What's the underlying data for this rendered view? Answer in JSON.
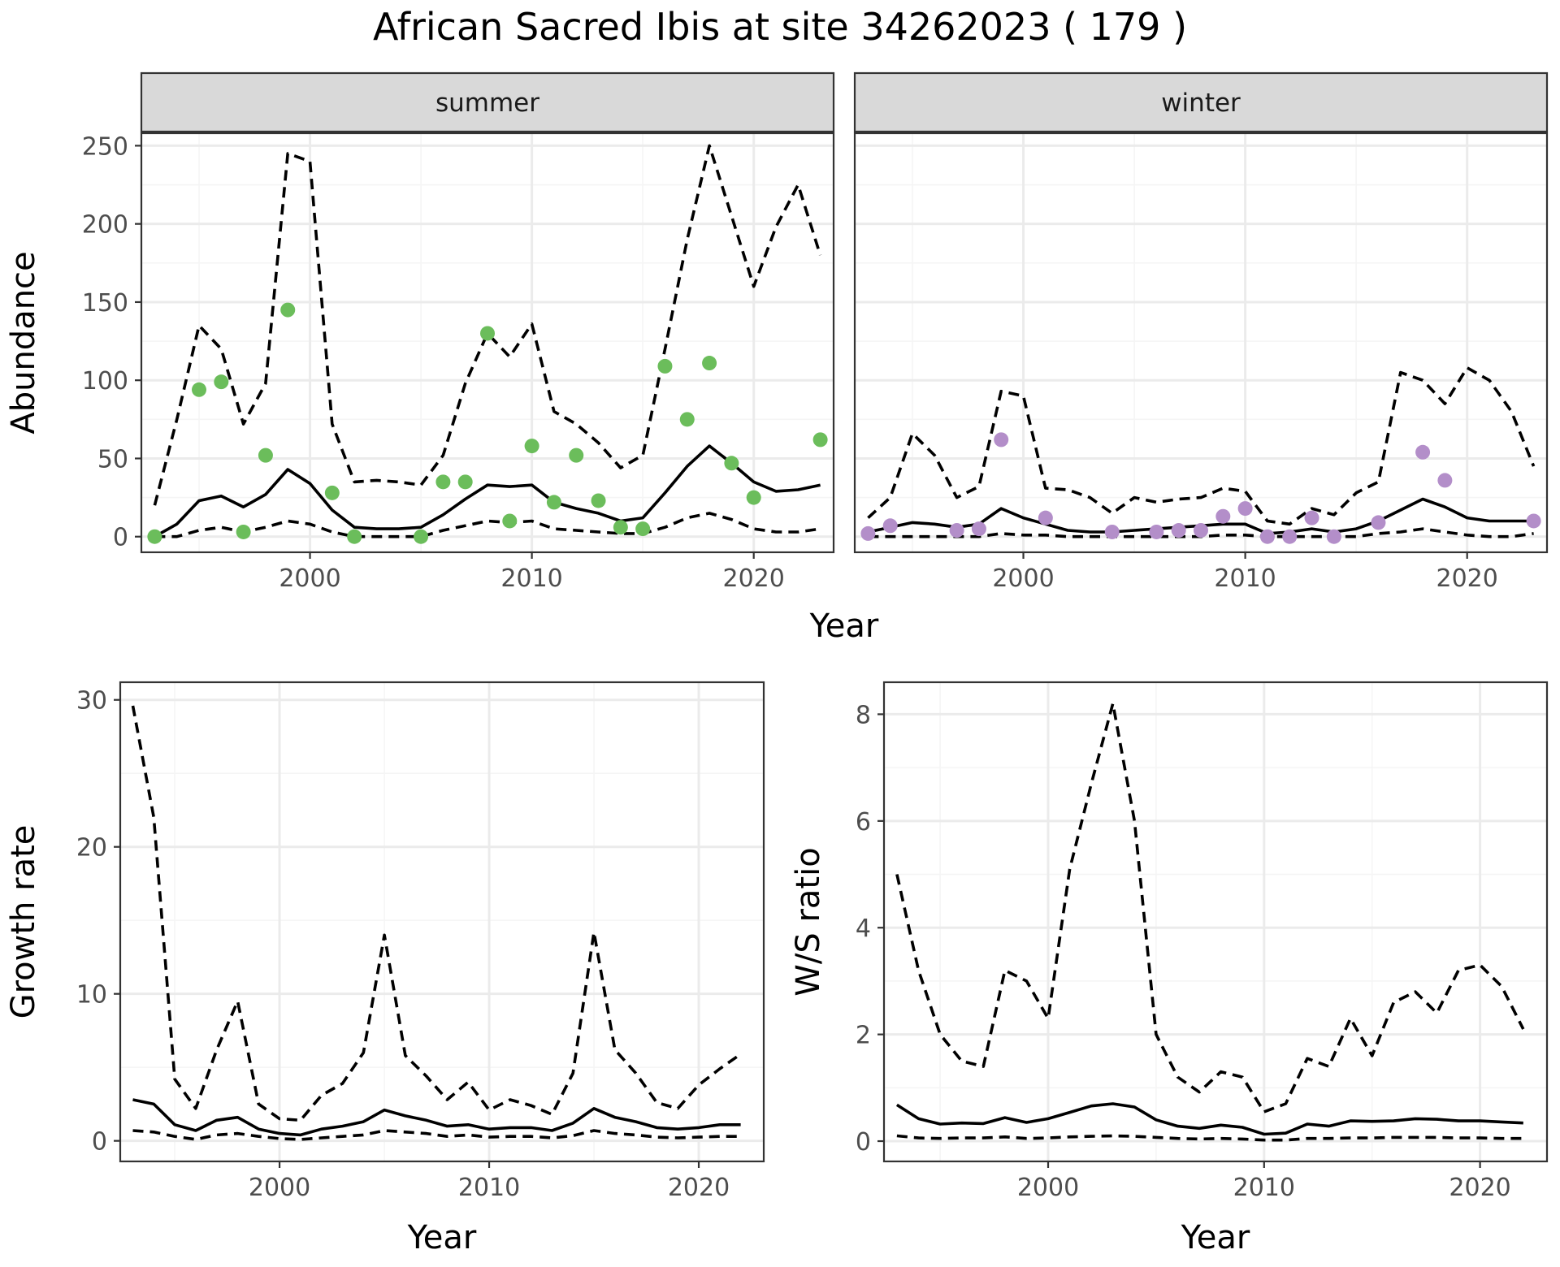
{
  "title": "African Sacred Ibis at site 34262023 ( 179 )",
  "colors": {
    "summer_points": "#6bbd5b",
    "winter_points": "#b38ec9",
    "line": "#000000",
    "strip_fill": "#d9d9d9",
    "grid_major": "#ebebeb",
    "grid_minor": "#f5f5f5",
    "tick_label": "#4d4d4d"
  },
  "chart_data": [
    {
      "type": "line",
      "panel": "summer",
      "strip_label": "summer",
      "ylabel": "Abundance",
      "xlabel": "Year",
      "xlim": [
        1992.4,
        2023.6
      ],
      "ylim": [
        -10,
        258
      ],
      "xticks": [
        2000,
        2010,
        2020
      ],
      "yticks": [
        0,
        50,
        100,
        150,
        200,
        250
      ],
      "x": [
        1993,
        1994,
        1995,
        1996,
        1997,
        1998,
        1999,
        2000,
        2001,
        2002,
        2003,
        2004,
        2005,
        2006,
        2007,
        2008,
        2009,
        2010,
        2011,
        2012,
        2013,
        2014,
        2015,
        2016,
        2017,
        2018,
        2019,
        2020,
        2021,
        2022,
        2023
      ],
      "series": [
        {
          "role": "mean",
          "style": "solid",
          "values": [
            0,
            8,
            23,
            26,
            19,
            27,
            43,
            34,
            17,
            6,
            5,
            5,
            6,
            14,
            24,
            33,
            32,
            33,
            22,
            18,
            15,
            10,
            12,
            28,
            45,
            58,
            47,
            35,
            29,
            30,
            33
          ]
        },
        {
          "role": "upper",
          "style": "dashed",
          "values": [
            20,
            75,
            135,
            120,
            72,
            98,
            245,
            240,
            72,
            35,
            36,
            35,
            33,
            52,
            98,
            130,
            115,
            136,
            80,
            72,
            60,
            44,
            52,
            120,
            190,
            250,
            205,
            160,
            198,
            225,
            180
          ]
        },
        {
          "role": "lower",
          "style": "dashed",
          "values": [
            0,
            0,
            4,
            6,
            3,
            6,
            10,
            8,
            3,
            0,
            0,
            0,
            0,
            4,
            7,
            10,
            9,
            10,
            5,
            4,
            3,
            2,
            2,
            6,
            12,
            15,
            11,
            5,
            3,
            3,
            5
          ]
        }
      ],
      "points": {
        "color": "#6bbd5b",
        "x": [
          1993,
          1995,
          1996,
          1997,
          1998,
          1999,
          2001,
          2002,
          2005,
          2006,
          2007,
          2008,
          2009,
          2010,
          2011,
          2012,
          2013,
          2014,
          2015,
          2016,
          2017,
          2018,
          2019,
          2020,
          2023
        ],
        "y": [
          0,
          94,
          99,
          3,
          52,
          145,
          28,
          0,
          0,
          35,
          35,
          130,
          10,
          58,
          22,
          52,
          23,
          6,
          5,
          109,
          75,
          111,
          47,
          25,
          62
        ]
      }
    },
    {
      "type": "line",
      "panel": "winter",
      "strip_label": "winter",
      "ylabel": "",
      "xlabel": "Year",
      "xlim": [
        1992.4,
        2023.6
      ],
      "ylim": [
        -10,
        258
      ],
      "xticks": [
        2000,
        2010,
        2020
      ],
      "yticks": [
        0,
        50,
        100,
        150,
        200,
        250
      ],
      "x": [
        1993,
        1994,
        1995,
        1996,
        1997,
        1998,
        1999,
        2000,
        2001,
        2002,
        2003,
        2004,
        2005,
        2006,
        2007,
        2008,
        2009,
        2010,
        2011,
        2012,
        2013,
        2014,
        2015,
        2016,
        2017,
        2018,
        2019,
        2020,
        2021,
        2022,
        2023
      ],
      "series": [
        {
          "role": "mean",
          "style": "solid",
          "values": [
            3,
            6,
            9,
            8,
            6,
            8,
            18,
            12,
            8,
            4,
            3,
            3,
            4,
            5,
            6,
            7,
            8,
            8,
            2,
            3,
            5,
            3,
            5,
            10,
            17,
            24,
            19,
            12,
            10,
            10,
            10
          ]
        },
        {
          "role": "upper",
          "style": "dashed",
          "values": [
            12,
            25,
            66,
            52,
            25,
            32,
            93,
            90,
            31,
            30,
            25,
            15,
            25,
            22,
            24,
            25,
            31,
            29,
            10,
            8,
            18,
            14,
            28,
            35,
            105,
            100,
            85,
            108,
            100,
            80,
            45
          ]
        },
        {
          "role": "lower",
          "style": "dashed",
          "values": [
            0,
            0,
            0,
            0,
            0,
            0,
            2,
            1,
            1,
            0,
            0,
            0,
            0,
            0,
            0,
            0,
            1,
            1,
            0,
            0,
            0,
            0,
            0,
            2,
            3,
            5,
            3,
            1,
            0,
            0,
            2
          ]
        }
      ],
      "points": {
        "color": "#b38ec9",
        "x": [
          1993,
          1994,
          1997,
          1998,
          1999,
          2001,
          2004,
          2006,
          2007,
          2008,
          2009,
          2010,
          2011,
          2012,
          2013,
          2014,
          2016,
          2018,
          2019,
          2023
        ],
        "y": [
          2,
          7,
          4,
          5,
          62,
          12,
          3,
          3,
          4,
          4,
          13,
          18,
          0,
          0,
          12,
          0,
          9,
          54,
          36,
          10
        ]
      }
    },
    {
      "type": "line",
      "panel": "growth",
      "ylabel": "Growth rate",
      "xlabel": "Year",
      "xlim": [
        1992.4,
        2023.1
      ],
      "ylim": [
        -1.4,
        31.2
      ],
      "xticks": [
        2000,
        2010,
        2020
      ],
      "yticks": [
        0,
        10,
        20,
        30
      ],
      "x": [
        1993,
        1994,
        1995,
        1996,
        1997,
        1998,
        1999,
        2000,
        2001,
        2002,
        2003,
        2004,
        2005,
        2006,
        2007,
        2008,
        2009,
        2010,
        2011,
        2012,
        2013,
        2014,
        2015,
        2016,
        2017,
        2018,
        2019,
        2020,
        2021,
        2022
      ],
      "series": [
        {
          "role": "mean",
          "style": "solid",
          "values": [
            2.8,
            2.5,
            1.1,
            0.7,
            1.4,
            1.6,
            0.8,
            0.5,
            0.4,
            0.8,
            1.0,
            1.3,
            2.1,
            1.7,
            1.4,
            1.0,
            1.1,
            0.8,
            0.9,
            0.9,
            0.7,
            1.2,
            2.2,
            1.6,
            1.3,
            0.9,
            0.8,
            0.9,
            1.1,
            1.1
          ]
        },
        {
          "role": "upper",
          "style": "dashed",
          "values": [
            29.6,
            22,
            4.2,
            2.2,
            6.2,
            9.5,
            2.5,
            1.5,
            1.4,
            3.1,
            3.9,
            6.0,
            14.0,
            5.8,
            4.4,
            2.8,
            4.0,
            2.1,
            2.8,
            2.4,
            1.8,
            4.6,
            14.2,
            6.2,
            4.6,
            2.6,
            2.2,
            3.8,
            4.9,
            5.9
          ]
        },
        {
          "role": "lower",
          "style": "dashed",
          "values": [
            0.7,
            0.6,
            0.3,
            0.1,
            0.4,
            0.5,
            0.3,
            0.15,
            0.1,
            0.2,
            0.3,
            0.4,
            0.7,
            0.6,
            0.5,
            0.3,
            0.4,
            0.25,
            0.3,
            0.3,
            0.2,
            0.35,
            0.7,
            0.5,
            0.4,
            0.25,
            0.2,
            0.25,
            0.3,
            0.3
          ]
        }
      ]
    },
    {
      "type": "line",
      "panel": "ratio",
      "ylabel": "W/S ratio",
      "xlabel": "Year",
      "xlim": [
        1992.4,
        2023.1
      ],
      "ylim": [
        -0.38,
        8.6
      ],
      "xticks": [
        2000,
        2010,
        2020
      ],
      "yticks": [
        0,
        2,
        4,
        6,
        8
      ],
      "x": [
        1993,
        1994,
        1995,
        1996,
        1997,
        1998,
        1999,
        2000,
        2001,
        2002,
        2003,
        2004,
        2005,
        2006,
        2007,
        2008,
        2009,
        2010,
        2011,
        2012,
        2013,
        2014,
        2015,
        2016,
        2017,
        2018,
        2019,
        2020,
        2021,
        2022
      ],
      "series": [
        {
          "role": "mean",
          "style": "solid",
          "values": [
            0.68,
            0.42,
            0.32,
            0.34,
            0.33,
            0.44,
            0.35,
            0.42,
            0.54,
            0.66,
            0.7,
            0.64,
            0.4,
            0.28,
            0.24,
            0.3,
            0.26,
            0.13,
            0.15,
            0.32,
            0.28,
            0.38,
            0.37,
            0.38,
            0.42,
            0.41,
            0.38,
            0.38,
            0.36,
            0.34
          ]
        },
        {
          "role": "upper",
          "style": "dashed",
          "values": [
            5.0,
            3.2,
            2.0,
            1.5,
            1.4,
            3.2,
            3.0,
            2.3,
            5.1,
            6.7,
            8.2,
            6.0,
            2.0,
            1.2,
            0.92,
            1.3,
            1.2,
            0.55,
            0.7,
            1.55,
            1.4,
            2.3,
            1.6,
            2.6,
            2.8,
            2.4,
            3.2,
            3.3,
            2.9,
            2.1
          ]
        },
        {
          "role": "lower",
          "style": "dashed",
          "values": [
            0.1,
            0.06,
            0.05,
            0.06,
            0.06,
            0.08,
            0.05,
            0.06,
            0.08,
            0.09,
            0.1,
            0.09,
            0.07,
            0.05,
            0.04,
            0.05,
            0.04,
            0.02,
            0.02,
            0.05,
            0.05,
            0.06,
            0.06,
            0.07,
            0.07,
            0.07,
            0.06,
            0.06,
            0.05,
            0.05
          ]
        }
      ]
    }
  ]
}
